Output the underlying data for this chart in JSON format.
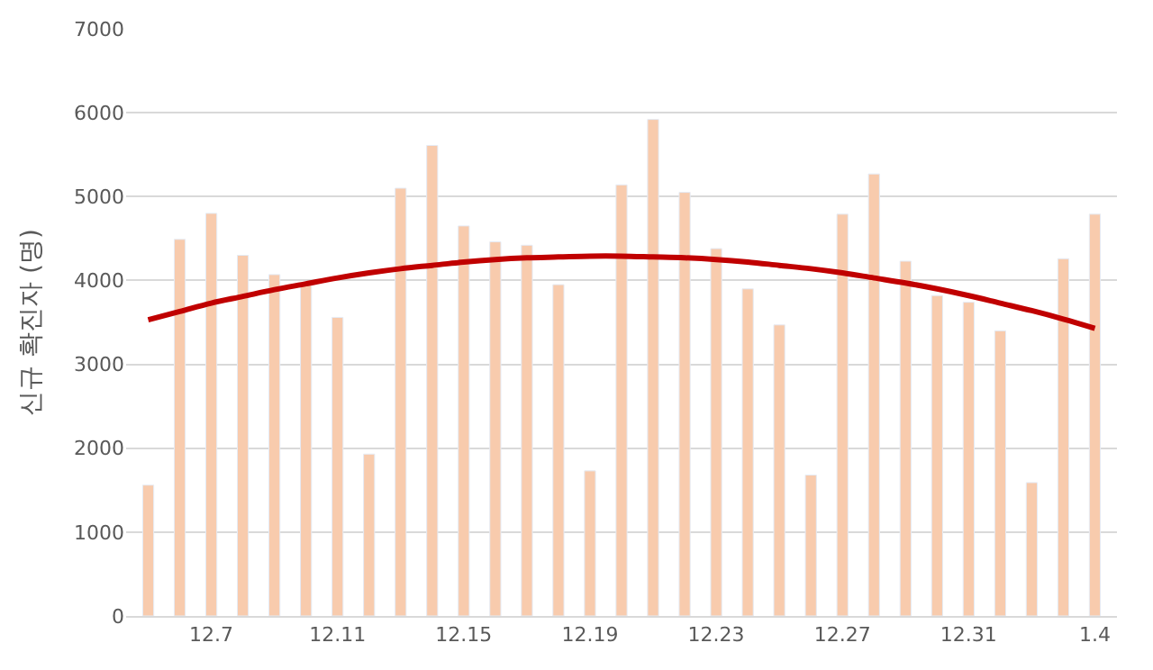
{
  "chart_data": {
    "type": "bar",
    "ylabel": "신규 확진자 (명)",
    "categories": [
      null,
      null,
      "12.7",
      null,
      null,
      null,
      "12.11",
      null,
      null,
      null,
      "12.15",
      null,
      null,
      null,
      "12.19",
      null,
      null,
      null,
      "12.23",
      null,
      null,
      null,
      "12.27",
      null,
      null,
      null,
      "12.31",
      null,
      null,
      null,
      "1.4"
    ],
    "series": [
      {
        "color": "#f8cbad",
        "values": [
          1560,
          4490,
          4800,
          4300,
          4070,
          3970,
          3560,
          1930,
          5100,
          5610,
          4650,
          4460,
          4420,
          3950,
          1730,
          5140,
          5920,
          5050,
          4380,
          3900,
          3470,
          1680,
          4790,
          5270,
          4230,
          3820,
          3740,
          3400,
          1590,
          4260,
          4790
        ]
      },
      {
        "type": "line",
        "color": "#c00000",
        "values": [
          3530,
          3630,
          3730,
          3810,
          3890,
          3960,
          4030,
          4090,
          4140,
          4180,
          4220,
          4250,
          4270,
          4280,
          4290,
          4290,
          4280,
          4270,
          4250,
          4220,
          4180,
          4140,
          4090,
          4030,
          3970,
          3900,
          3820,
          3730,
          3640,
          3540,
          3430
        ]
      }
    ],
    "ylim": [
      0,
      7000
    ],
    "yticks": [
      0,
      1000,
      2000,
      3000,
      4000,
      5000,
      6000,
      7000
    ],
    "grid": "y"
  }
}
